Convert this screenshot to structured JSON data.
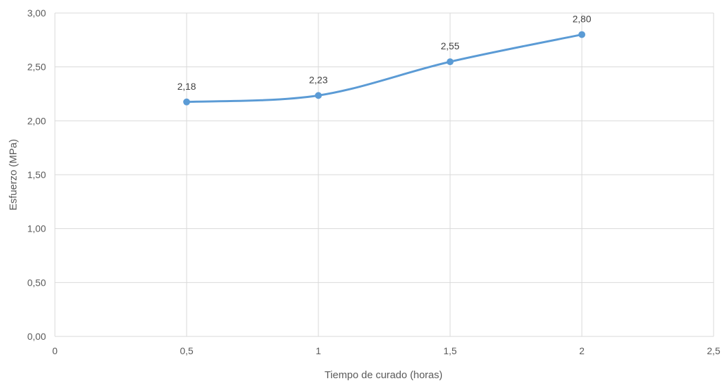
{
  "chart_data": {
    "type": "scatter",
    "title": "",
    "xlabel": "Tiempo de curado (horas)",
    "ylabel": "Esfuerzo (MPa)",
    "xlim": [
      0,
      2.5
    ],
    "ylim": [
      0,
      3.0
    ],
    "x_ticks": [
      0,
      0.5,
      1,
      1.5,
      2,
      2.5
    ],
    "x_tick_labels": [
      "0",
      "0,5",
      "1",
      "1,5",
      "2",
      "2,5"
    ],
    "y_ticks": [
      0,
      0.5,
      1.0,
      1.5,
      2.0,
      2.5,
      3.0
    ],
    "y_tick_labels": [
      "0,00",
      "0,50",
      "1,00",
      "1,50",
      "2,00",
      "2,50",
      "3,00"
    ],
    "grid": true,
    "smoothed_line": true,
    "series": [
      {
        "x": [
          0.5,
          1,
          1.5,
          2
        ],
        "y": [
          2.175,
          2.235,
          2.548,
          2.8
        ],
        "data_labels": [
          "2,18",
          "2,23",
          "2,55",
          "2,80"
        ]
      }
    ],
    "colors": {
      "series": "#5b9bd5",
      "grid": "#d9d9d9",
      "text": "#595959"
    }
  }
}
